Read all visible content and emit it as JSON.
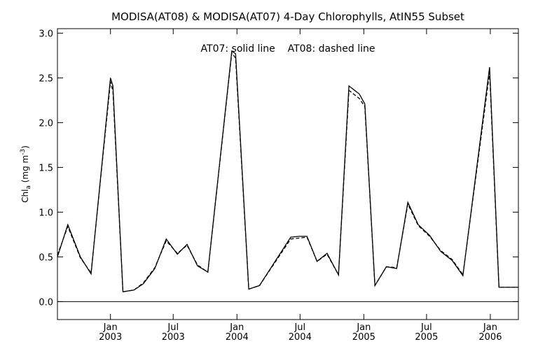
{
  "chart_data": {
    "type": "line",
    "title": "MODISA(AT08) & MODISA(AT07) 4-Day Chlorophylls, AtIN55 Subset",
    "annotation": "AT07: solid line    AT08: dashed line",
    "ylabel": {
      "prefix": "Chl",
      "subscript": "a",
      "unit_open": " (mg m",
      "unit_exp": "-3",
      "unit_close": ")"
    },
    "ylim": [
      -0.2,
      3.05
    ],
    "xlim": [
      "2002-08-01",
      "2006-03-23"
    ],
    "y_ticks": [
      "0.0",
      "0.5",
      "1.0",
      "1.5",
      "2.0",
      "2.5",
      "3.0"
    ],
    "x_ticks": [
      {
        "date": "2003-01-01",
        "line1": "Jan",
        "line2": "2003"
      },
      {
        "date": "2003-07-01",
        "line1": "Jul",
        "line2": "2003"
      },
      {
        "date": "2004-01-01",
        "line1": "Jan",
        "line2": "2004"
      },
      {
        "date": "2004-07-01",
        "line1": "Jul",
        "line2": "2004"
      },
      {
        "date": "2005-01-01",
        "line1": "Jan",
        "line2": "2005"
      },
      {
        "date": "2005-07-01",
        "line1": "Jul",
        "line2": "2005"
      },
      {
        "date": "2006-01-01",
        "line1": "Jan",
        "line2": "2006"
      }
    ],
    "zero_line": true,
    "series": [
      {
        "name": "AT07",
        "style": "solid",
        "color": "#000000",
        "points": [
          [
            "2002-08-01",
            0.5
          ],
          [
            "2002-08-31",
            0.86
          ],
          [
            "2002-10-06",
            0.5
          ],
          [
            "2002-11-06",
            0.31
          ],
          [
            "2003-01-01",
            2.5
          ],
          [
            "2003-01-08",
            2.41
          ],
          [
            "2003-02-06",
            0.11
          ],
          [
            "2003-03-10",
            0.13
          ],
          [
            "2003-04-06",
            0.2
          ],
          [
            "2003-05-09",
            0.37
          ],
          [
            "2003-06-11",
            0.7
          ],
          [
            "2003-07-13",
            0.53
          ],
          [
            "2003-08-10",
            0.64
          ],
          [
            "2003-09-09",
            0.4
          ],
          [
            "2003-10-09",
            0.33
          ],
          [
            "2003-12-17",
            2.8
          ],
          [
            "2003-12-28",
            2.77
          ],
          [
            "2004-02-04",
            0.14
          ],
          [
            "2004-03-06",
            0.18
          ],
          [
            "2004-06-04",
            0.72
          ],
          [
            "2004-06-28",
            0.73
          ],
          [
            "2004-07-21",
            0.73
          ],
          [
            "2004-08-19",
            0.45
          ],
          [
            "2004-09-17",
            0.54
          ],
          [
            "2004-10-20",
            0.3
          ],
          [
            "2004-11-19",
            2.41
          ],
          [
            "2004-12-19",
            2.32
          ],
          [
            "2005-01-04",
            2.21
          ],
          [
            "2005-02-02",
            0.18
          ],
          [
            "2005-03-07",
            0.39
          ],
          [
            "2005-04-06",
            0.37
          ],
          [
            "2005-05-08",
            1.11
          ],
          [
            "2005-06-07",
            0.86
          ],
          [
            "2005-07-10",
            0.74
          ],
          [
            "2005-08-11",
            0.56
          ],
          [
            "2005-09-13",
            0.46
          ],
          [
            "2005-10-14",
            0.29
          ],
          [
            "2005-12-30",
            2.62
          ],
          [
            "2006-01-26",
            0.16
          ],
          [
            "2006-03-22",
            0.16
          ]
        ]
      },
      {
        "name": "AT08",
        "style": "dashed",
        "color": "#000000",
        "points": [
          [
            "2002-08-01",
            0.52
          ],
          [
            "2002-08-31",
            0.84
          ],
          [
            "2002-10-06",
            0.49
          ],
          [
            "2002-11-06",
            0.32
          ],
          [
            "2003-01-01",
            2.46
          ],
          [
            "2003-01-08",
            2.35
          ],
          [
            "2003-02-06",
            0.11
          ],
          [
            "2003-03-10",
            0.13
          ],
          [
            "2003-04-06",
            0.21
          ],
          [
            "2003-05-09",
            0.38
          ],
          [
            "2003-06-11",
            0.68
          ],
          [
            "2003-07-13",
            0.54
          ],
          [
            "2003-08-10",
            0.63
          ],
          [
            "2003-09-09",
            0.41
          ],
          [
            "2003-10-09",
            0.33
          ],
          [
            "2003-12-17",
            2.78
          ],
          [
            "2003-12-28",
            2.72
          ],
          [
            "2004-02-04",
            0.14
          ],
          [
            "2004-03-06",
            0.18
          ],
          [
            "2004-06-04",
            0.7
          ],
          [
            "2004-06-28",
            0.71
          ],
          [
            "2004-07-21",
            0.72
          ],
          [
            "2004-08-19",
            0.45
          ],
          [
            "2004-09-17",
            0.53
          ],
          [
            "2004-10-20",
            0.3
          ],
          [
            "2004-11-19",
            2.36
          ],
          [
            "2004-12-19",
            2.27
          ],
          [
            "2005-01-04",
            2.18
          ],
          [
            "2005-02-02",
            0.18
          ],
          [
            "2005-03-07",
            0.39
          ],
          [
            "2005-04-06",
            0.38
          ],
          [
            "2005-05-08",
            1.09
          ],
          [
            "2005-06-07",
            0.85
          ],
          [
            "2005-07-10",
            0.73
          ],
          [
            "2005-08-11",
            0.57
          ],
          [
            "2005-09-13",
            0.47
          ],
          [
            "2005-10-14",
            0.3
          ],
          [
            "2005-12-30",
            2.56
          ],
          [
            "2006-01-26",
            0.16
          ],
          [
            "2006-03-22",
            0.16
          ]
        ]
      }
    ]
  }
}
